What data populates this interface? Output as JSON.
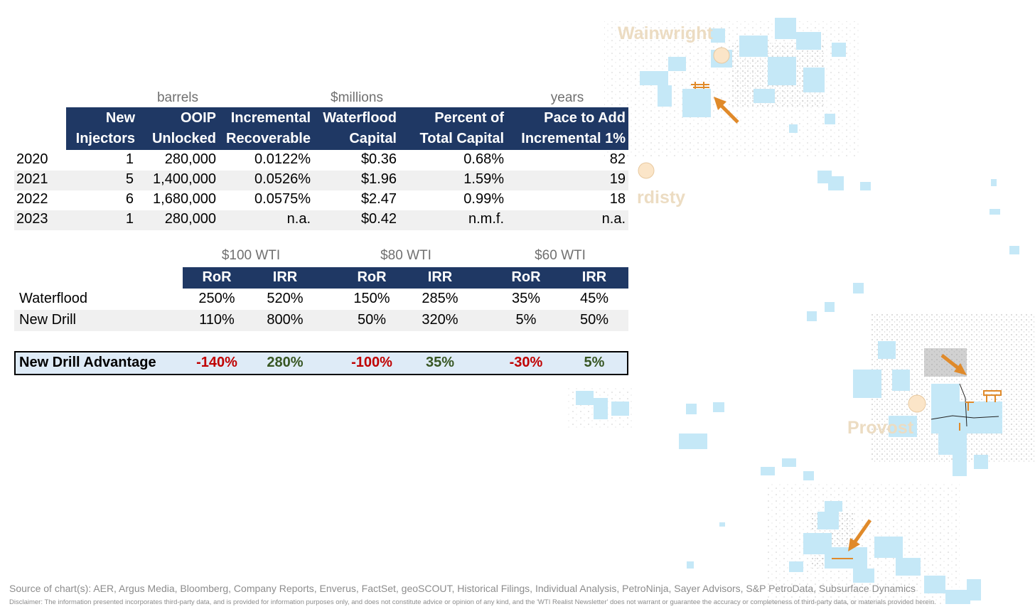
{
  "map": {
    "labels": [
      "Wainwright",
      "rdisty",
      "Provost"
    ],
    "colors": {
      "block": "#c5e8f7",
      "label": "#ecdcc2",
      "arrow": "#e08a2a",
      "marker": "#fbe5c8"
    }
  },
  "table1": {
    "group_headers": [
      "barrels",
      "$millions",
      "years"
    ],
    "columns": [
      [
        "New",
        "Injectors"
      ],
      [
        "OOIP",
        "Unlocked"
      ],
      [
        "Incremental",
        "Recoverable"
      ],
      [
        "Waterflood",
        "Capital"
      ],
      [
        "Percent of",
        "Total Capital"
      ],
      [
        "Pace to Add",
        "Incremental 1%"
      ]
    ],
    "rows": [
      [
        "2020",
        "1",
        "280,000",
        "0.0122%",
        "$0.36",
        "0.68%",
        "82"
      ],
      [
        "2021",
        "5",
        "1,400,000",
        "0.0526%",
        "$1.96",
        "1.59%",
        "19"
      ],
      [
        "2022",
        "6",
        "1,680,000",
        "0.0575%",
        "$2.47",
        "0.99%",
        "18"
      ],
      [
        "2023",
        "1",
        "280,000",
        "n.a.",
        "$0.42",
        "n.m.f.",
        "n.a."
      ]
    ]
  },
  "table2": {
    "group_headers": [
      "$100 WTI",
      "$80 WTI",
      "$60 WTI"
    ],
    "columns": [
      "RoR",
      "IRR",
      "RoR",
      "IRR",
      "RoR",
      "IRR"
    ],
    "rows": [
      [
        "Waterflood",
        "250%",
        "520%",
        "150%",
        "285%",
        "35%",
        "45%"
      ],
      [
        "New Drill",
        "110%",
        "800%",
        "50%",
        "320%",
        "5%",
        "50%"
      ]
    ],
    "advantage": [
      "New Drill Advantage",
      "-140%",
      "280%",
      "-100%",
      "35%",
      "-30%",
      "5%"
    ]
  },
  "colors": {
    "header_bg": "#1f3864",
    "alt_row": "#f0f0f0",
    "advantage_bg": "#deebf7",
    "negative": "#c00000",
    "positive": "#375623"
  },
  "footer": {
    "source": "Source of chart(s): AER, Argus Media,  Bloomberg, Company Reports, Enverus, FactSet, geoSCOUT, Historical Filings, Individual Analysis, PetroNinja, Sayer Advisors, S&P PetroData, Subsurface Dynamics",
    "disclaimer": "Disclaimer: The information presented incorporates third-party data, and is provided for information purposes only, and does not constitute advice or opinion of any kind, and the 'WTI Realist Newsletter' does not warrant or guarantee the accuracy or completeness of third-party data, or materials provided herein."
  }
}
